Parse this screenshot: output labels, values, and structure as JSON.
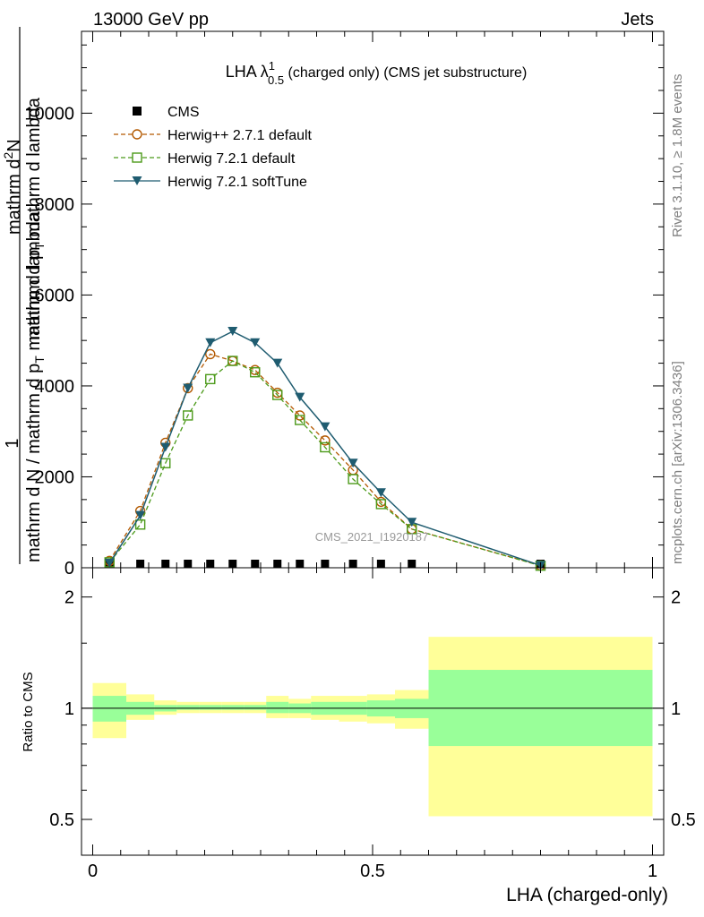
{
  "header": {
    "energy": "13000 GeV pp",
    "process": "Jets",
    "title_main": "LHA λ",
    "title_sup": "1",
    "title_sub": "0.5",
    "title_rest": " (charged only) (CMS jet substructure)",
    "watermark": "CMS_2021_I1920187",
    "side_version": "Rivet 3.1.10, ≥ 1.8M events",
    "side_site": "mcplots.cern.ch [arXiv:1306.3436]"
  },
  "ylabel_main": {
    "one": "1",
    "line_a": "mathrm d N / mathrm d p",
    "line_a_sub": "T",
    "line_a_rest": " mathrm d lambda",
    "line_b": "mathrm d",
    "line_b_sup": "2",
    "line_b_rest": "N",
    "line_c": "mathrm d p",
    "line_c_sub": "T",
    "line_c_rest": " mathrm d lambda"
  },
  "ylabel_ratio": "Ratio to CMS",
  "xlabel": "LHA (charged-only)",
  "legend": [
    {
      "name": "CMS",
      "color": "#000000"
    },
    {
      "name": "Herwig++ 2.7.1 default",
      "color": "#b35900"
    },
    {
      "name": "Herwig 7.2.1 default",
      "color": "#4c9a1a"
    },
    {
      "name": "Herwig 7.2.1 softTune",
      "color": "#1f5c70"
    }
  ],
  "chart_data": {
    "type": "line",
    "x_edges": [
      0,
      0.06,
      0.11,
      0.15,
      0.19,
      0.23,
      0.27,
      0.31,
      0.35,
      0.39,
      0.44,
      0.49,
      0.54,
      0.6,
      1.0
    ],
    "x": [
      0.03,
      0.085,
      0.13,
      0.17,
      0.21,
      0.25,
      0.29,
      0.33,
      0.37,
      0.415,
      0.465,
      0.515,
      0.57,
      0.8
    ],
    "series": [
      {
        "name": "CMS",
        "style": "square",
        "color": "#000000",
        "values": [
          0,
          0,
          0,
          0,
          0,
          0,
          0,
          0,
          0,
          0,
          0,
          0,
          0,
          0
        ]
      },
      {
        "name": "Herwig++ 2.7.1 default",
        "style": "circle",
        "color": "#b35900",
        "values": [
          150,
          1250,
          2750,
          3950,
          4700,
          4550,
          4350,
          3850,
          3350,
          2800,
          2150,
          1450,
          850,
          50
        ]
      },
      {
        "name": "Herwig 7.2.1 default",
        "style": "square-open",
        "color": "#4c9a1a",
        "values": [
          120,
          950,
          2300,
          3350,
          4150,
          4550,
          4300,
          3800,
          3250,
          2650,
          1950,
          1400,
          850,
          45
        ]
      },
      {
        "name": "Herwig 7.2.1 softTune",
        "style": "triangle-down",
        "color": "#1f5c70",
        "values": [
          100,
          1150,
          2650,
          3950,
          4950,
          5200,
          4950,
          4500,
          3750,
          3100,
          2300,
          1650,
          1000,
          50
        ]
      }
    ],
    "main_ylim": [
      0,
      11800
    ],
    "main_yticks": [
      {
        "value": 0,
        "label": "0"
      },
      {
        "value": 2000,
        "label": "2000"
      },
      {
        "value": 4000,
        "label": "4000"
      },
      {
        "value": 6000,
        "label": "6000"
      },
      {
        "value": 8000,
        "label": "8000"
      },
      {
        "value": 10000,
        "label": "10000"
      }
    ],
    "ratio": {
      "ylim": [
        0.4,
        2.4
      ],
      "log_scale": true,
      "reference": 1,
      "yticks": [
        {
          "value": 0.5,
          "label": "0.5"
        },
        {
          "value": 1,
          "label": "1"
        },
        {
          "value": 2,
          "label": "2"
        }
      ],
      "stat_band_color": "#99ff99",
      "syst_band_color": "#ffff99",
      "stat_lo": [
        0.92,
        0.96,
        0.98,
        0.99,
        0.99,
        0.99,
        0.99,
        0.97,
        0.97,
        0.96,
        0.96,
        0.95,
        0.94,
        0.79
      ],
      "stat_hi": [
        1.08,
        1.04,
        1.02,
        1.02,
        1.02,
        1.02,
        1.02,
        1.04,
        1.03,
        1.04,
        1.04,
        1.05,
        1.06,
        1.27
      ],
      "syst_lo": [
        0.83,
        0.93,
        0.96,
        0.97,
        0.97,
        0.97,
        0.97,
        0.94,
        0.94,
        0.93,
        0.92,
        0.91,
        0.88,
        0.51
      ],
      "syst_hi": [
        1.17,
        1.09,
        1.05,
        1.04,
        1.04,
        1.04,
        1.04,
        1.08,
        1.06,
        1.08,
        1.08,
        1.09,
        1.12,
        1.56
      ]
    },
    "x_ticks": [
      {
        "value": 0,
        "label": "0"
      },
      {
        "value": 0.5,
        "label": "0.5"
      },
      {
        "value": 1,
        "label": "1"
      }
    ],
    "xlim": [
      -0.02,
      1.02
    ]
  }
}
